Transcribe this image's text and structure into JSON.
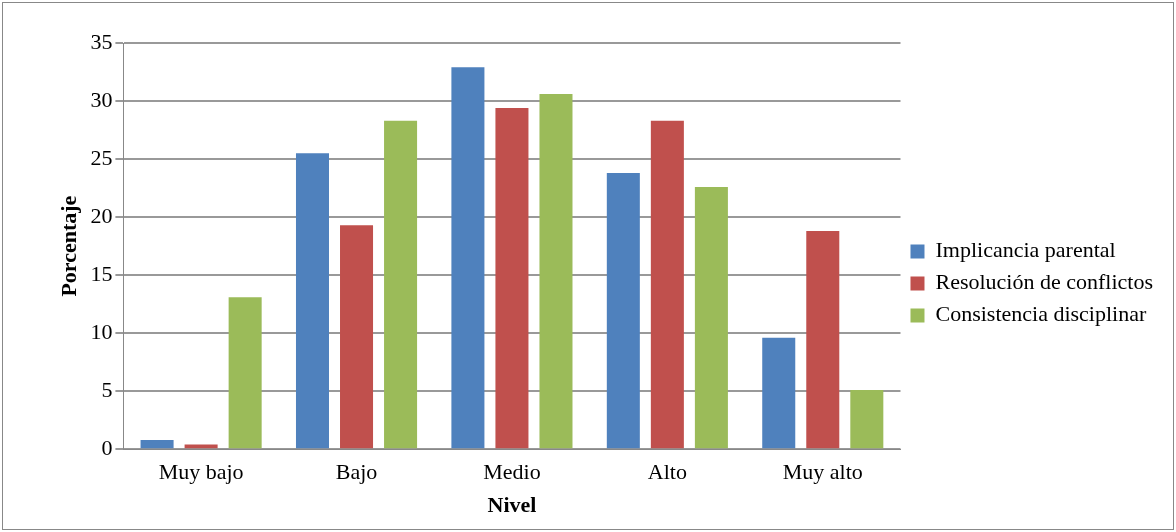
{
  "chart_data": {
    "type": "bar",
    "xlabel": "Nivel",
    "ylabel": "Porcentaje",
    "categories": [
      "Muy bajo",
      "Bajo",
      "Medio",
      "Alto",
      "Muy alto"
    ],
    "series": [
      {
        "name": "Implicancia parental",
        "color": "#4f81bd",
        "values": [
          0.8,
          25.5,
          32.9,
          23.8,
          9.6
        ]
      },
      {
        "name": "Resolución de conflictos",
        "color": "#c0504d",
        "values": [
          0.4,
          19.3,
          29.4,
          28.3,
          18.8
        ]
      },
      {
        "name": "Consistencia disciplinar",
        "color": "#9bbb59",
        "values": [
          13.1,
          28.3,
          30.6,
          22.6,
          5.1
        ]
      }
    ],
    "ylim": [
      0,
      35
    ],
    "yticks": [
      0,
      5,
      10,
      15,
      20,
      25,
      30,
      35
    ],
    "grid": "y",
    "legend": "right"
  }
}
